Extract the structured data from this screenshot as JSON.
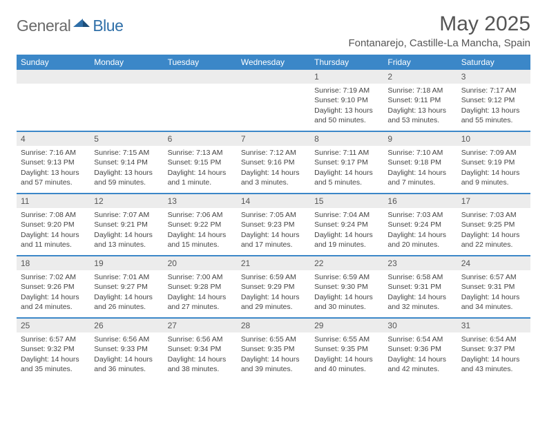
{
  "logo": {
    "general": "General",
    "blue": "Blue"
  },
  "title": "May 2025",
  "location": "Fontanarejo, Castille-La Mancha, Spain",
  "colors": {
    "header_bg": "#3b87c8",
    "header_text": "#ffffff",
    "daynum_bg": "#ececec",
    "rule": "#3b87c8",
    "text": "#444444",
    "title_text": "#555555",
    "logo_gray": "#6a6a6a",
    "logo_blue": "#2f6fa8"
  },
  "weekdays": [
    "Sunday",
    "Monday",
    "Tuesday",
    "Wednesday",
    "Thursday",
    "Friday",
    "Saturday"
  ],
  "weeks": [
    [
      {
        "n": "",
        "sunrise": "",
        "sunset": "",
        "daylight": ""
      },
      {
        "n": "",
        "sunrise": "",
        "sunset": "",
        "daylight": ""
      },
      {
        "n": "",
        "sunrise": "",
        "sunset": "",
        "daylight": ""
      },
      {
        "n": "",
        "sunrise": "",
        "sunset": "",
        "daylight": ""
      },
      {
        "n": "1",
        "sunrise": "Sunrise: 7:19 AM",
        "sunset": "Sunset: 9:10 PM",
        "daylight": "Daylight: 13 hours and 50 minutes."
      },
      {
        "n": "2",
        "sunrise": "Sunrise: 7:18 AM",
        "sunset": "Sunset: 9:11 PM",
        "daylight": "Daylight: 13 hours and 53 minutes."
      },
      {
        "n": "3",
        "sunrise": "Sunrise: 7:17 AM",
        "sunset": "Sunset: 9:12 PM",
        "daylight": "Daylight: 13 hours and 55 minutes."
      }
    ],
    [
      {
        "n": "4",
        "sunrise": "Sunrise: 7:16 AM",
        "sunset": "Sunset: 9:13 PM",
        "daylight": "Daylight: 13 hours and 57 minutes."
      },
      {
        "n": "5",
        "sunrise": "Sunrise: 7:15 AM",
        "sunset": "Sunset: 9:14 PM",
        "daylight": "Daylight: 13 hours and 59 minutes."
      },
      {
        "n": "6",
        "sunrise": "Sunrise: 7:13 AM",
        "sunset": "Sunset: 9:15 PM",
        "daylight": "Daylight: 14 hours and 1 minute."
      },
      {
        "n": "7",
        "sunrise": "Sunrise: 7:12 AM",
        "sunset": "Sunset: 9:16 PM",
        "daylight": "Daylight: 14 hours and 3 minutes."
      },
      {
        "n": "8",
        "sunrise": "Sunrise: 7:11 AM",
        "sunset": "Sunset: 9:17 PM",
        "daylight": "Daylight: 14 hours and 5 minutes."
      },
      {
        "n": "9",
        "sunrise": "Sunrise: 7:10 AM",
        "sunset": "Sunset: 9:18 PM",
        "daylight": "Daylight: 14 hours and 7 minutes."
      },
      {
        "n": "10",
        "sunrise": "Sunrise: 7:09 AM",
        "sunset": "Sunset: 9:19 PM",
        "daylight": "Daylight: 14 hours and 9 minutes."
      }
    ],
    [
      {
        "n": "11",
        "sunrise": "Sunrise: 7:08 AM",
        "sunset": "Sunset: 9:20 PM",
        "daylight": "Daylight: 14 hours and 11 minutes."
      },
      {
        "n": "12",
        "sunrise": "Sunrise: 7:07 AM",
        "sunset": "Sunset: 9:21 PM",
        "daylight": "Daylight: 14 hours and 13 minutes."
      },
      {
        "n": "13",
        "sunrise": "Sunrise: 7:06 AM",
        "sunset": "Sunset: 9:22 PM",
        "daylight": "Daylight: 14 hours and 15 minutes."
      },
      {
        "n": "14",
        "sunrise": "Sunrise: 7:05 AM",
        "sunset": "Sunset: 9:23 PM",
        "daylight": "Daylight: 14 hours and 17 minutes."
      },
      {
        "n": "15",
        "sunrise": "Sunrise: 7:04 AM",
        "sunset": "Sunset: 9:24 PM",
        "daylight": "Daylight: 14 hours and 19 minutes."
      },
      {
        "n": "16",
        "sunrise": "Sunrise: 7:03 AM",
        "sunset": "Sunset: 9:24 PM",
        "daylight": "Daylight: 14 hours and 20 minutes."
      },
      {
        "n": "17",
        "sunrise": "Sunrise: 7:03 AM",
        "sunset": "Sunset: 9:25 PM",
        "daylight": "Daylight: 14 hours and 22 minutes."
      }
    ],
    [
      {
        "n": "18",
        "sunrise": "Sunrise: 7:02 AM",
        "sunset": "Sunset: 9:26 PM",
        "daylight": "Daylight: 14 hours and 24 minutes."
      },
      {
        "n": "19",
        "sunrise": "Sunrise: 7:01 AM",
        "sunset": "Sunset: 9:27 PM",
        "daylight": "Daylight: 14 hours and 26 minutes."
      },
      {
        "n": "20",
        "sunrise": "Sunrise: 7:00 AM",
        "sunset": "Sunset: 9:28 PM",
        "daylight": "Daylight: 14 hours and 27 minutes."
      },
      {
        "n": "21",
        "sunrise": "Sunrise: 6:59 AM",
        "sunset": "Sunset: 9:29 PM",
        "daylight": "Daylight: 14 hours and 29 minutes."
      },
      {
        "n": "22",
        "sunrise": "Sunrise: 6:59 AM",
        "sunset": "Sunset: 9:30 PM",
        "daylight": "Daylight: 14 hours and 30 minutes."
      },
      {
        "n": "23",
        "sunrise": "Sunrise: 6:58 AM",
        "sunset": "Sunset: 9:31 PM",
        "daylight": "Daylight: 14 hours and 32 minutes."
      },
      {
        "n": "24",
        "sunrise": "Sunrise: 6:57 AM",
        "sunset": "Sunset: 9:31 PM",
        "daylight": "Daylight: 14 hours and 34 minutes."
      }
    ],
    [
      {
        "n": "25",
        "sunrise": "Sunrise: 6:57 AM",
        "sunset": "Sunset: 9:32 PM",
        "daylight": "Daylight: 14 hours and 35 minutes."
      },
      {
        "n": "26",
        "sunrise": "Sunrise: 6:56 AM",
        "sunset": "Sunset: 9:33 PM",
        "daylight": "Daylight: 14 hours and 36 minutes."
      },
      {
        "n": "27",
        "sunrise": "Sunrise: 6:56 AM",
        "sunset": "Sunset: 9:34 PM",
        "daylight": "Daylight: 14 hours and 38 minutes."
      },
      {
        "n": "28",
        "sunrise": "Sunrise: 6:55 AM",
        "sunset": "Sunset: 9:35 PM",
        "daylight": "Daylight: 14 hours and 39 minutes."
      },
      {
        "n": "29",
        "sunrise": "Sunrise: 6:55 AM",
        "sunset": "Sunset: 9:35 PM",
        "daylight": "Daylight: 14 hours and 40 minutes."
      },
      {
        "n": "30",
        "sunrise": "Sunrise: 6:54 AM",
        "sunset": "Sunset: 9:36 PM",
        "daylight": "Daylight: 14 hours and 42 minutes."
      },
      {
        "n": "31",
        "sunrise": "Sunrise: 6:54 AM",
        "sunset": "Sunset: 9:37 PM",
        "daylight": "Daylight: 14 hours and 43 minutes."
      }
    ]
  ]
}
